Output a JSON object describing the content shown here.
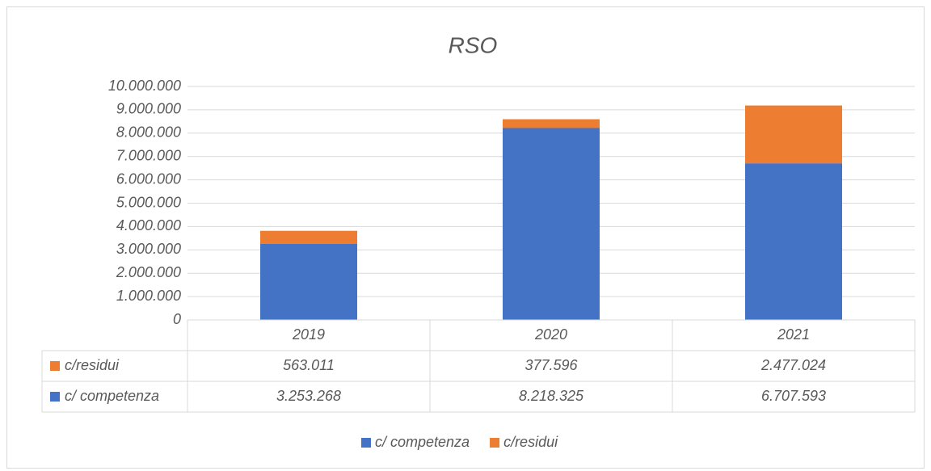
{
  "chart_data": {
    "type": "bar",
    "stacked": true,
    "title": "RSO",
    "categories": [
      "2019",
      "2020",
      "2021"
    ],
    "series": [
      {
        "name": "c/ competenza",
        "color": "#4472c4",
        "values": [
          3253268,
          8218325,
          6707593
        ],
        "value_labels": [
          "3.253.268",
          "8.218.325",
          "6.707.593"
        ]
      },
      {
        "name": "c/residui",
        "color": "#ed7d31",
        "values": [
          563011,
          377596,
          2477024
        ],
        "value_labels": [
          "563.011",
          "377.596",
          "2.477.024"
        ]
      }
    ],
    "ylim": [
      0,
      10000000
    ],
    "yticks": [
      0,
      {
        "value": 1000000,
        "label": "1.000.000"
      },
      {
        "value": 2000000,
        "label": "2.000.000"
      },
      {
        "value": 3000000,
        "label": "3.000.000"
      },
      {
        "value": 4000000,
        "label": "4.000.000"
      },
      {
        "value": 5000000,
        "label": "5.000.000"
      },
      {
        "value": 6000000,
        "label": "6.000.000"
      },
      {
        "value": 7000000,
        "label": "7.000.000"
      },
      {
        "value": 8000000,
        "label": "8.000.000"
      },
      {
        "value": 9000000,
        "label": "9.000.000"
      },
      {
        "value": 10000000,
        "label": "10.000.000"
      }
    ],
    "grid": true,
    "legend": "bottom"
  }
}
